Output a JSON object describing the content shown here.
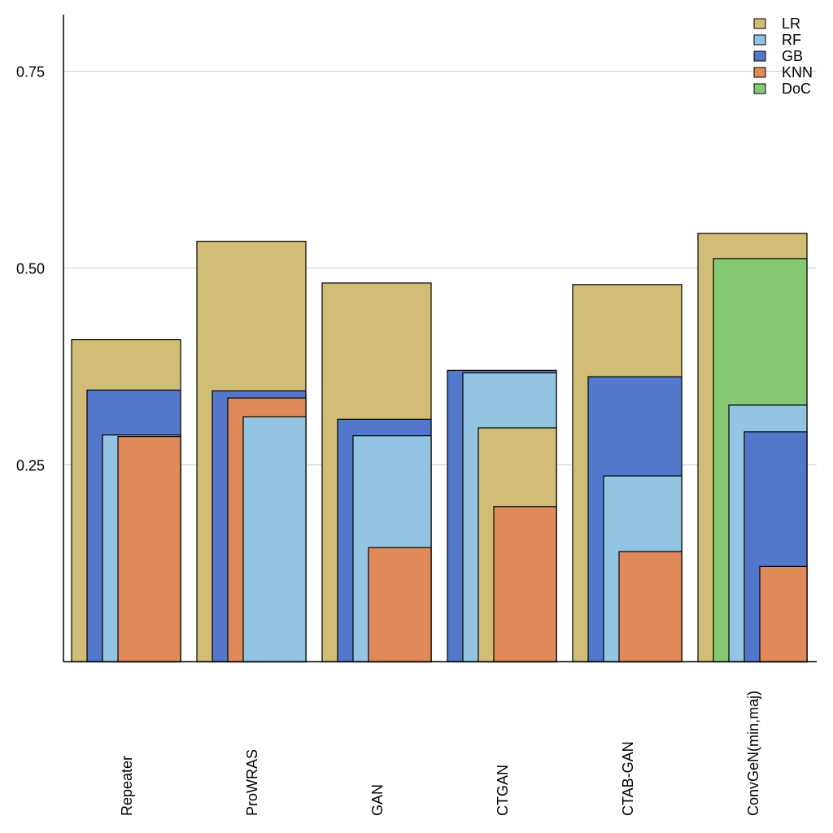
{
  "chart_data": {
    "type": "bar",
    "title": "",
    "xlabel": "",
    "ylabel": "",
    "ylim": [
      0,
      0.82
    ],
    "yticks": [
      0.25,
      0.5,
      0.75
    ],
    "ytick_labels": [
      "0.25",
      "0.50",
      "0.75"
    ],
    "grid": true,
    "legend_position": "top-right",
    "categories": [
      "Repeater",
      "ProWRAS",
      "GAN",
      "CTGAN",
      "CTAB-GAN",
      "ConvGeN(min,maj)"
    ],
    "series": [
      {
        "name": "LR",
        "color": "#d1bd76",
        "values": [
          0.409,
          0.534,
          0.481,
          0.297,
          0.479,
          0.544
        ]
      },
      {
        "name": "RF",
        "color": "#93c4e1",
        "values": [
          0.288,
          0.311,
          0.287,
          0.367,
          0.236,
          0.326
        ]
      },
      {
        "name": "GB",
        "color": "#5377cb",
        "values": [
          0.345,
          0.344,
          0.308,
          0.37,
          0.362,
          0.292
        ]
      },
      {
        "name": "KNN",
        "color": "#e08a59",
        "values": [
          0.286,
          0.335,
          0.145,
          0.197,
          0.14,
          0.121
        ]
      },
      {
        "name": "DoC",
        "color": "#85c972",
        "values": [
          null,
          null,
          null,
          null,
          null,
          0.512
        ]
      }
    ]
  }
}
